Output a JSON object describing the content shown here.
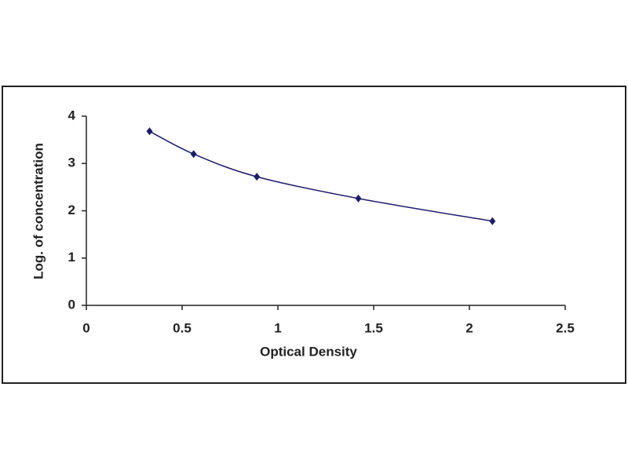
{
  "chart_data": {
    "type": "line",
    "markers": true,
    "smooth": true,
    "x_label": "Optical Density",
    "y_label": "Log. of concentration",
    "x": [
      0.33,
      0.56,
      0.89,
      1.42,
      2.12
    ],
    "values": [
      3.68,
      3.2,
      2.72,
      2.26,
      1.78
    ],
    "color": "#1c1c6b",
    "xlim": [
      0,
      2.5
    ],
    "xticks": [
      0,
      0.5,
      1,
      1.5,
      2,
      2.5
    ],
    "ylim": [
      0,
      4
    ],
    "yticks": [
      0,
      1,
      2,
      3,
      4
    ],
    "grid": false
  }
}
